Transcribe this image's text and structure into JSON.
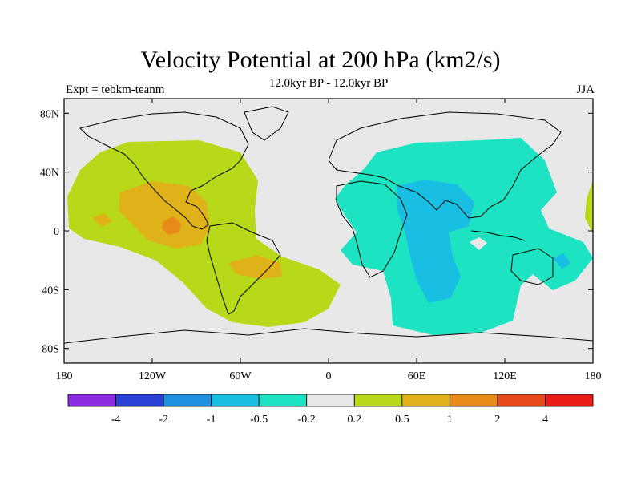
{
  "chart_data": {
    "type": "heatmap",
    "title": "Velocity Potential at 200 hPa (km2/s)",
    "subtitle": "12.0kyr BP - 12.0kyr BP",
    "left_label": "Expt = tebkm-teanm",
    "right_label": "JJA",
    "x_range": [
      -180,
      180
    ],
    "y_range": [
      -90,
      90
    ],
    "x_ticks": [
      {
        "value": -180,
        "label": "180"
      },
      {
        "value": -120,
        "label": "120W"
      },
      {
        "value": -60,
        "label": "60W"
      },
      {
        "value": 0,
        "label": "0"
      },
      {
        "value": 60,
        "label": "60E"
      },
      {
        "value": 120,
        "label": "120E"
      },
      {
        "value": 180,
        "label": "180"
      }
    ],
    "y_ticks": [
      {
        "value": 80,
        "label": "80N"
      },
      {
        "value": 40,
        "label": "40N"
      },
      {
        "value": 0,
        "label": "0"
      },
      {
        "value": -40,
        "label": "40S"
      },
      {
        "value": -80,
        "label": "80S"
      }
    ],
    "colorbar": {
      "colors": [
        "#8a2be2",
        "#2a3fd6",
        "#1f8fe0",
        "#19bfe3",
        "#1ee3c2",
        "#e8e8e8",
        "#b8d81a",
        "#e0b21a",
        "#e88a1a",
        "#e64a1a",
        "#e81a1a"
      ],
      "levels": [
        "-4",
        "-2",
        "-1",
        "-0.5",
        "-0.2",
        "0.2",
        "0.5",
        "1",
        "2",
        "4"
      ]
    },
    "regions": [
      {
        "level": "0.2 to 0.5",
        "color": "#b8d81a",
        "area": "Eastern Pacific / Americas / South Atlantic"
      },
      {
        "level": "0.5 to 1",
        "color": "#e0b21a",
        "area": "Central America / subtropical South America"
      },
      {
        "level": "1 to 2",
        "color": "#e88a1a",
        "area": "Eastern tropical Pacific"
      },
      {
        "level": "-0.5 to -0.2",
        "color": "#1ee3c2",
        "area": "Africa / Asia / Indian Ocean / Australia"
      },
      {
        "level": "-1 to -0.5",
        "color": "#19bfe3",
        "area": "Arabian Sea / Indian Ocean / near New Guinea"
      }
    ]
  }
}
